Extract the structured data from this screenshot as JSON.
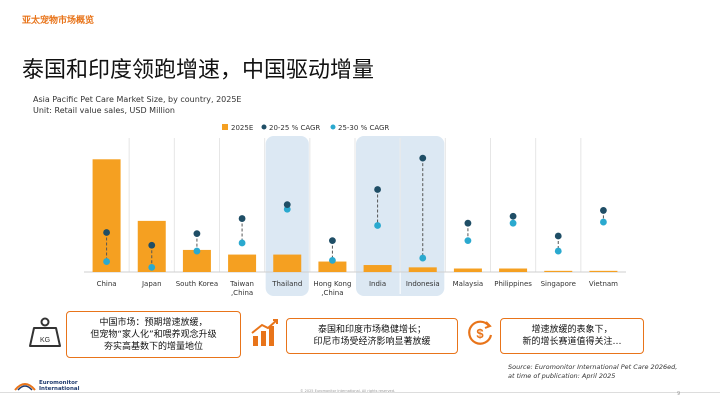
{
  "section_tag": "亚太宠物市场概览",
  "headline": "泰国和印度领跑增速，中国驱动增量",
  "chart_data": {
    "type": "bar",
    "title": "Asia Pacific Pet Care Market Size, by country, 2025E",
    "unit": "Unit: Retail value sales, USD Million",
    "legend": [
      "2025E",
      "20-25 % CAGR",
      "25-30 % CAGR"
    ],
    "legend_placement": "top",
    "categories": [
      "China",
      "Japan",
      "South Korea",
      "Taiwan ,China",
      "Thailand",
      "Hong Kong ,China",
      "India",
      "Indonesia",
      "Malaysia",
      "Philippines",
      "Singapore",
      "Vietnam"
    ],
    "series": [
      {
        "name": "2025E",
        "kind": "bar",
        "values": [
          97,
          44,
          19,
          15,
          15,
          9,
          6,
          4,
          3,
          3,
          1,
          1
        ]
      },
      {
        "name": "20-25 % CAGR",
        "kind": "dot",
        "values": [
          34,
          23,
          33,
          46,
          58,
          27,
          71,
          98,
          42,
          48,
          31,
          53
        ]
      },
      {
        "name": "25-30 % CAGR",
        "kind": "dot",
        "values": [
          9,
          4,
          18,
          25,
          54,
          10,
          40,
          12,
          27,
          42,
          18,
          43
        ]
      }
    ],
    "highlighted_categories": [
      "Thailand",
      "India",
      "Indonesia"
    ],
    "colors": {
      "bar": "#f5a021",
      "cagr_2025": "#1f4e66",
      "cagr_2530": "#2aa9cf",
      "highlight": "#dce8f3"
    },
    "grid": false,
    "ylim": [
      0,
      105
    ]
  },
  "callouts": [
    {
      "icon": "weight-icon",
      "text": "中国市场：预期增速放缓，\n但宠物“家人化”和喂养观念升级\n夯实高基数下的增量地位"
    },
    {
      "icon": "bar-growth-icon",
      "text": "泰国和印度市场稳健增长；\n印尼市场受经济影响显著放缓"
    },
    {
      "icon": "dollar-down-icon",
      "text": "增速放缓的表象下，\n新的增长赛道值得关注…"
    }
  ],
  "source": {
    "line1": "Source: Euromonitor International Pet Care 2026ed,",
    "line2": "at time of publication: April 2025"
  },
  "footer": {
    "copyright": "© 2025 Euromonitor International. All rights reserved.",
    "page": "9",
    "logo_text": "Euromonitor\nInternational"
  }
}
